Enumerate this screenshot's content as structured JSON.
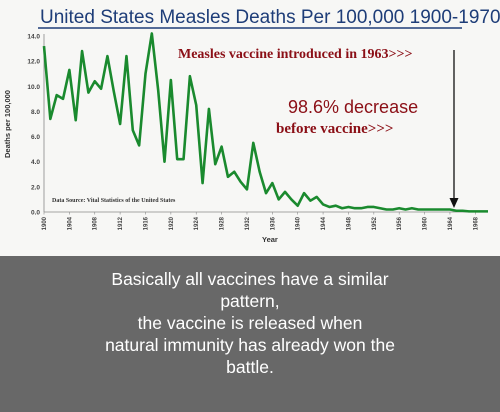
{
  "chart_data": {
    "type": "line",
    "title": "United States Measles Deaths Per 100,000 1900-1970",
    "xlabel": "Year",
    "ylabel": "Deaths per 100,000",
    "xlim": [
      1900,
      1970
    ],
    "ylim": [
      0,
      14
    ],
    "yticks": [
      "0.0",
      "2.0",
      "4.0",
      "6.0",
      "8.0",
      "10.0",
      "12.0",
      "14.0"
    ],
    "xticks": [
      "1900",
      "1904",
      "1908",
      "1912",
      "1916",
      "1920",
      "1924",
      "1928",
      "1932",
      "1936",
      "1940",
      "1944",
      "1948",
      "1952",
      "1956",
      "1960",
      "1964",
      "1968"
    ],
    "series": [
      {
        "color": "#1a8a2e",
        "x": [
          1900,
          1901,
          1902,
          1903,
          1904,
          1905,
          1906,
          1907,
          1908,
          1909,
          1910,
          1911,
          1912,
          1913,
          1914,
          1915,
          1916,
          1917,
          1918,
          1919,
          1920,
          1921,
          1922,
          1923,
          1924,
          1925,
          1926,
          1927,
          1928,
          1929,
          1930,
          1931,
          1932,
          1933,
          1934,
          1935,
          1936,
          1937,
          1938,
          1939,
          1940,
          1941,
          1942,
          1943,
          1944,
          1945,
          1946,
          1947,
          1948,
          1949,
          1950,
          1951,
          1952,
          1953,
          1954,
          1955,
          1956,
          1957,
          1958,
          1959,
          1960,
          1961,
          1962,
          1963,
          1964,
          1965,
          1966,
          1967,
          1968,
          1969,
          1970
        ],
        "y": [
          13.2,
          7.4,
          9.3,
          9.0,
          11.3,
          7.3,
          12.8,
          9.5,
          10.4,
          9.8,
          12.4,
          9.6,
          7.0,
          12.4,
          6.5,
          5.3,
          11.0,
          14.2,
          9.7,
          4.0,
          10.5,
          4.2,
          4.2,
          10.8,
          8.5,
          2.3,
          8.2,
          3.8,
          5.2,
          2.8,
          3.2,
          2.4,
          1.8,
          5.5,
          3.2,
          1.5,
          2.3,
          1.0,
          1.6,
          1.0,
          0.5,
          1.5,
          0.9,
          1.2,
          0.6,
          0.4,
          0.5,
          0.3,
          0.4,
          0.3,
          0.3,
          0.4,
          0.4,
          0.3,
          0.2,
          0.2,
          0.3,
          0.2,
          0.3,
          0.2,
          0.2,
          0.2,
          0.2,
          0.2,
          0.2,
          0.1,
          0.1,
          0.05,
          0.05,
          0.05,
          0.05
        ]
      }
    ],
    "annotations": {
      "vaccine": "Measles vaccine introduced in 1963>>>",
      "decrease": "98.6% decrease",
      "before": "before vaccine>>>",
      "source": "Data Source: Vital Statistics of the United States"
    },
    "grid": false,
    "legend": "none"
  },
  "caption": {
    "lines": [
      "Basically all vaccines have a similar",
      "pattern,",
      "the vaccine is released when",
      "natural immunity has already won the",
      "battle."
    ]
  }
}
